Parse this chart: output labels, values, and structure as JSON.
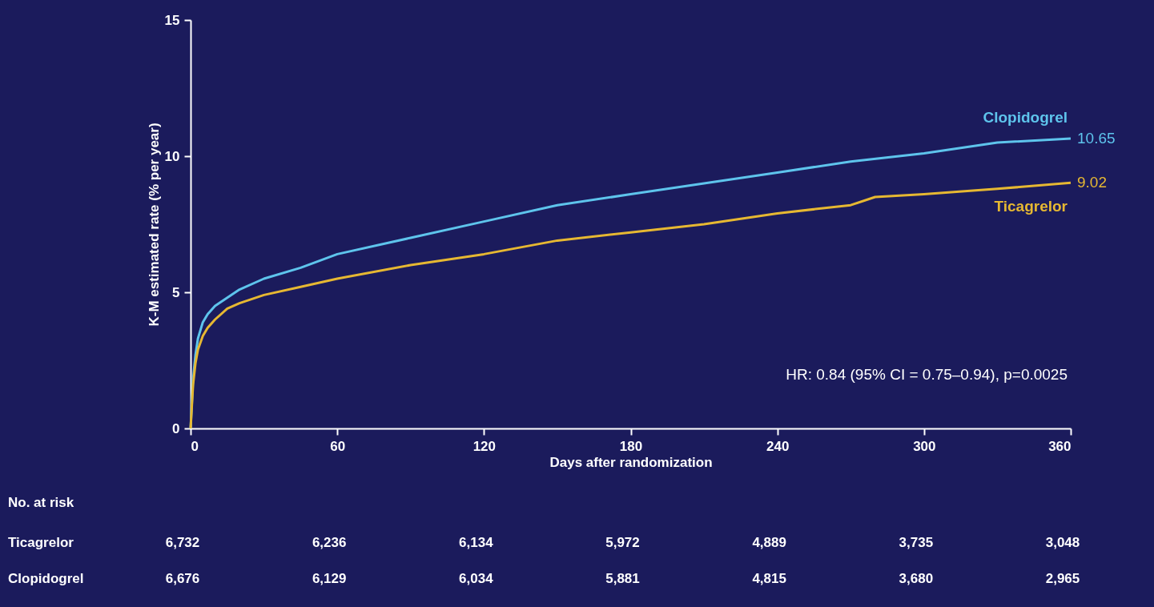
{
  "chart_data": {
    "type": "line",
    "xlabel": "Days after randomization",
    "ylabel": "K-M estimated rate (% per year)",
    "xlim": [
      0,
      360
    ],
    "xticks": [
      0,
      60,
      120,
      180,
      240,
      300,
      360
    ],
    "ylim": [
      0,
      15
    ],
    "yticks": [
      0,
      5,
      10,
      15
    ],
    "grid": false,
    "series": [
      {
        "name": "Clopidogrel",
        "color": "#5ec4ec",
        "x": [
          0,
          1,
          2,
          3,
          5,
          7,
          10,
          15,
          20,
          30,
          45,
          60,
          90,
          120,
          150,
          180,
          210,
          240,
          270,
          300,
          330,
          360
        ],
        "values": [
          0,
          1.8,
          2.7,
          3.3,
          3.9,
          4.2,
          4.5,
          4.8,
          5.1,
          5.5,
          5.9,
          6.4,
          7.0,
          7.6,
          8.2,
          8.6,
          9.0,
          9.4,
          9.8,
          10.1,
          10.5,
          10.65
        ],
        "value_labels": [
          null,
          null,
          null,
          null,
          null,
          null,
          null,
          null,
          null,
          null,
          null,
          null,
          null,
          null,
          null,
          null,
          null,
          null,
          null,
          null,
          null,
          "10.65"
        ]
      },
      {
        "name": "Ticagrelor",
        "color": "#e6b832",
        "x": [
          0,
          1,
          2,
          3,
          5,
          7,
          10,
          15,
          20,
          30,
          45,
          60,
          90,
          120,
          150,
          180,
          210,
          240,
          270,
          280,
          300,
          330,
          360
        ],
        "values": [
          0,
          1.6,
          2.4,
          2.9,
          3.4,
          3.7,
          4.0,
          4.4,
          4.6,
          4.9,
          5.2,
          5.5,
          6.0,
          6.4,
          6.9,
          7.2,
          7.5,
          7.9,
          8.2,
          8.5,
          8.6,
          8.8,
          9.02
        ],
        "value_labels": [
          null,
          null,
          null,
          null,
          null,
          null,
          null,
          null,
          null,
          null,
          null,
          null,
          null,
          null,
          null,
          null,
          null,
          null,
          null,
          null,
          null,
          null,
          "9.02"
        ]
      }
    ],
    "annotations": [
      "HR: 0.84 (95% CI = 0.75–0.94), p=0.0025",
      "No. at risk",
      "Ticagrelor",
      "6,732",
      "6,236",
      "6,134",
      "5,972",
      "4,889",
      "3,735",
      "3,048",
      "Clopidogrel",
      "6,676",
      "6,129",
      "6,034",
      "5,881",
      "4,815",
      "3,680",
      "2,965"
    ]
  }
}
